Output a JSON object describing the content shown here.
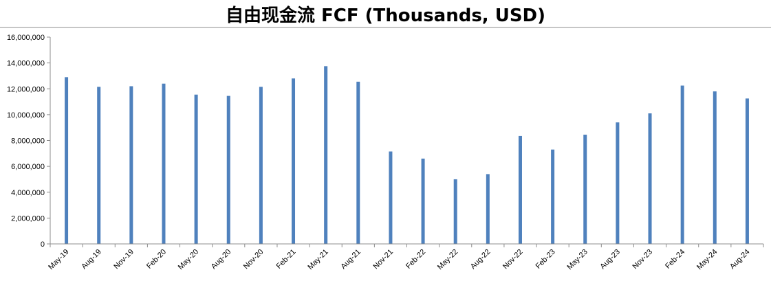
{
  "chart_data": {
    "type": "bar",
    "title": "自由现金流 FCF (Thousands, USD)",
    "categories": [
      "May-19",
      "Aug-19",
      "Nov-19",
      "Feb-20",
      "May-20",
      "Aug-20",
      "Nov-20",
      "Feb-21",
      "May-21",
      "Aug-21",
      "Nov-21",
      "Feb-22",
      "May-22",
      "Aug-22",
      "Nov-22",
      "Feb-23",
      "May-23",
      "Aug-23",
      "Nov-23",
      "Feb-24",
      "May-24",
      "Aug-24"
    ],
    "values": [
      12900000,
      12150000,
      12200000,
      12400000,
      11550000,
      11450000,
      12150000,
      12800000,
      13750000,
      12550000,
      7150000,
      6600000,
      5000000,
      5400000,
      8350000,
      7300000,
      8450000,
      9400000,
      10100000,
      12250000,
      11800000,
      11250000
    ],
    "ylim": [
      0,
      16000000
    ],
    "yticks": [
      0,
      2000000,
      4000000,
      6000000,
      8000000,
      10000000,
      12000000,
      14000000,
      16000000
    ],
    "ytick_labels": [
      "0",
      "2,000,000",
      "4,000,000",
      "6,000,000",
      "8,000,000",
      "10,000,000",
      "12,000,000",
      "14,000,000",
      "16,000,000"
    ],
    "xlabel": "",
    "ylabel": "",
    "grid": false,
    "bar_color": "#4F81BD",
    "axis_color": "#8C8C8C"
  }
}
